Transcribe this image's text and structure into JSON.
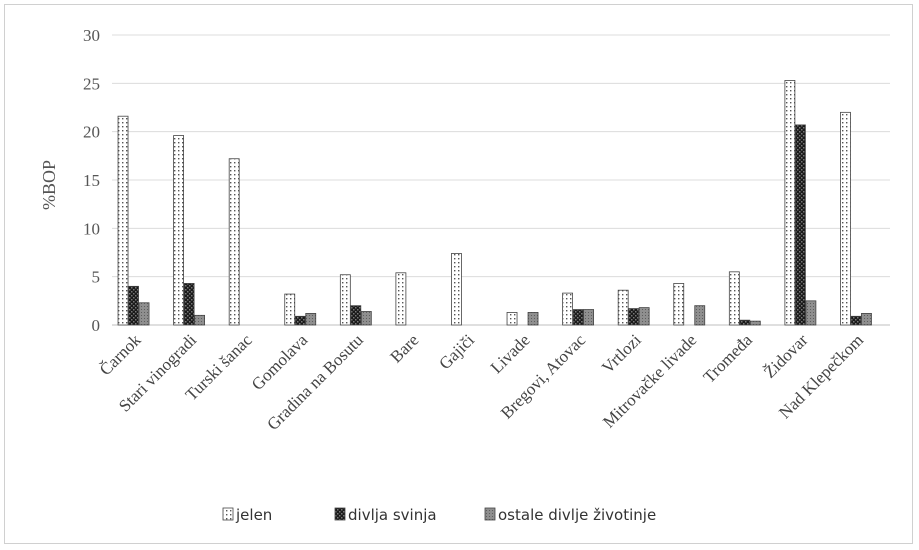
{
  "chart_data": {
    "type": "bar",
    "title": "",
    "xlabel": "",
    "ylabel": "%BOP",
    "ylim": [
      0,
      30
    ],
    "yticks": [
      0,
      5,
      10,
      15,
      20,
      25,
      30
    ],
    "grid": true,
    "legend_position": "bottom",
    "categories": [
      "Čarnok",
      "Stari vinogradi",
      "Turski šanac",
      "Gomolava",
      "Gradina na  Bosutu",
      "Bare",
      "Gajiči",
      "Livade",
      "Bregovi, Atovac",
      "Vrtlozi",
      "Mitrovačke livade",
      "Tromeđa",
      "Židovar",
      "Nad Klepečkom"
    ],
    "series": [
      {
        "name": "jelen",
        "pattern": "dots",
        "color": "#ffffff",
        "values": [
          21.6,
          19.6,
          17.2,
          3.2,
          5.2,
          5.4,
          7.4,
          1.3,
          3.3,
          3.6,
          4.3,
          5.5,
          25.3,
          22.0
        ]
      },
      {
        "name": "divlja svinja",
        "pattern": "dark-checker",
        "color": "#222222",
        "values": [
          4.0,
          4.3,
          0,
          0.9,
          2.0,
          0,
          0,
          0,
          1.6,
          1.7,
          0,
          0.5,
          20.7,
          0.9
        ]
      },
      {
        "name": "ostale divlje životinje",
        "pattern": "grey",
        "color": "#8a8a8a",
        "values": [
          2.3,
          1.0,
          0,
          1.2,
          1.4,
          0,
          0,
          1.3,
          1.6,
          1.8,
          2.0,
          0.4,
          2.5,
          1.2
        ]
      }
    ]
  }
}
